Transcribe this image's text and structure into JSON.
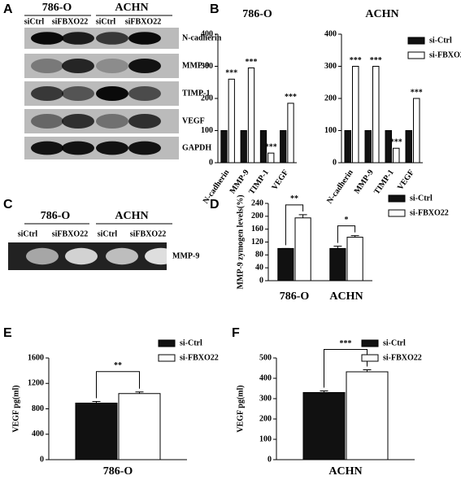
{
  "panel_labels": [
    "A",
    "B",
    "C",
    "D",
    "E",
    "F"
  ],
  "blots": [
    {
      "groups": [
        "786-O",
        "ACHN"
      ],
      "lanes": [
        "siCtrl",
        "siFBXO22",
        "siCtrl",
        "siFBXO22"
      ],
      "rows": [
        "N-cadherin",
        "MMP-9",
        "TIMP-1",
        "VEGF",
        "GAPDH"
      ]
    },
    {
      "groups": [
        "786-O",
        "ACHN"
      ],
      "lanes": [
        "siCtrl",
        "siFBXO22",
        "siCtrl",
        "siFBXO22"
      ],
      "rows": [
        "MMP-9"
      ]
    }
  ],
  "chart_data": [
    {
      "type": "bar",
      "title": "786-O",
      "categories": [
        "N-cadherin",
        "MMP-9",
        "TIMP-1",
        "VEGF"
      ],
      "series": [
        {
          "color": "#111111",
          "values": [
            100,
            100,
            100,
            100
          ]
        },
        {
          "color": "#ffffff",
          "values": [
            260,
            295,
            30,
            185
          ]
        }
      ],
      "annotations": [
        "***",
        "***",
        "***",
        "***"
      ],
      "ylim": [
        0,
        400
      ],
      "yticks": [
        0,
        100,
        200,
        300,
        400
      ]
    },
    {
      "type": "bar",
      "title": "ACHN",
      "categories": [
        "N-cadherin",
        "MMP-9",
        "TIMP-1",
        "VEGF"
      ],
      "series": [
        {
          "name": "si-Ctrl",
          "color": "#111111",
          "values": [
            100,
            100,
            100,
            100
          ]
        },
        {
          "name": "si-FBXO22",
          "color": "#ffffff",
          "values": [
            300,
            300,
            45,
            200
          ]
        }
      ],
      "annotations": [
        "***",
        "***",
        "***",
        "***"
      ],
      "ylim": [
        0,
        400
      ],
      "yticks": [
        0,
        100,
        200,
        300,
        400
      ]
    },
    {
      "type": "bar",
      "y_label": "MMP-9 zymogen levels(%)",
      "categories": [
        "786-O",
        "ACHN"
      ],
      "series": [
        {
          "name": "si-Ctrl",
          "color": "#111111",
          "values": [
            100,
            100
          ],
          "errors": [
            0,
            7
          ]
        },
        {
          "name": "si-FBXO22",
          "color": "#ffffff",
          "values": [
            195,
            135
          ],
          "errors": [
            10,
            5
          ]
        }
      ],
      "annotations": [
        "**",
        "*"
      ],
      "bracket": true,
      "ylim": [
        0,
        240
      ],
      "yticks": [
        0,
        40,
        80,
        120,
        160,
        200,
        240
      ]
    },
    {
      "type": "bar",
      "y_label": "VEGF pg(ml)",
      "categories": [
        "786-O"
      ],
      "series": [
        {
          "name": "si-Ctrl",
          "color": "#111111",
          "values": [
            890
          ],
          "errors": [
            25
          ]
        },
        {
          "name": "si-FBXO22",
          "color": "#ffffff",
          "values": [
            1040
          ],
          "errors": [
            25
          ]
        }
      ],
      "annotations": [
        "**"
      ],
      "bracket": true,
      "ylim": [
        0,
        1600
      ],
      "yticks": [
        0,
        400,
        800,
        1200,
        1600
      ]
    },
    {
      "type": "bar",
      "y_label": "VEGF pg(ml)",
      "categories": [
        "ACHN"
      ],
      "series": [
        {
          "name": "si-Ctrl",
          "color": "#111111",
          "values": [
            330
          ],
          "errors": [
            8
          ]
        },
        {
          "name": "si-FBXO22",
          "color": "#ffffff",
          "values": [
            432
          ],
          "errors": [
            10
          ]
        }
      ],
      "annotations": [
        "***"
      ],
      "bracket": true,
      "ylim": [
        0,
        500
      ],
      "yticks": [
        0,
        100,
        200,
        300,
        400,
        500
      ]
    }
  ]
}
